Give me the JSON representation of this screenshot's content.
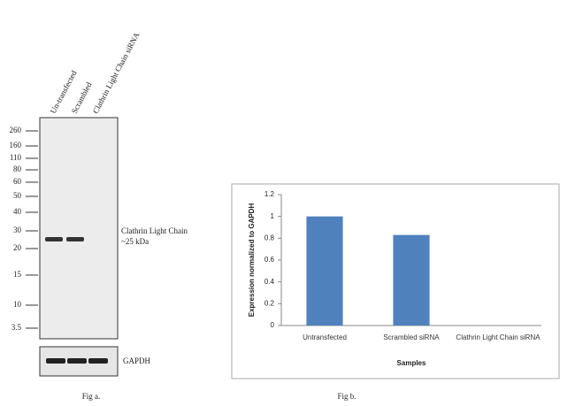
{
  "blot": {
    "lane_labels": [
      "Un-transfected",
      "Scrambled",
      "Clathrin Light Chain siRNA"
    ],
    "markers": [
      "260",
      "160",
      "110",
      "80",
      "60",
      "50",
      "40",
      "30",
      "20",
      "15",
      "10",
      "3.5"
    ],
    "band_label": "Clathrin Light Chain",
    "band_size": "~25 kDa",
    "loading_control": "GAPDH",
    "caption": "Fig a."
  },
  "chart_data": {
    "type": "bar",
    "caption": "Fig b.",
    "x_label": "Samples",
    "y_label": "Expression normalized to GAPDH",
    "categories": [
      "Untransfected",
      "Scrambled siRNA",
      "Clathrin Light Chain siRNA"
    ],
    "values": [
      1,
      0.83,
      0
    ],
    "color": "#4f81bd",
    "ylim": [
      0,
      1.2
    ],
    "yticks": [
      0,
      0.2,
      0.4,
      0.6,
      0.8,
      1,
      1.2
    ]
  }
}
